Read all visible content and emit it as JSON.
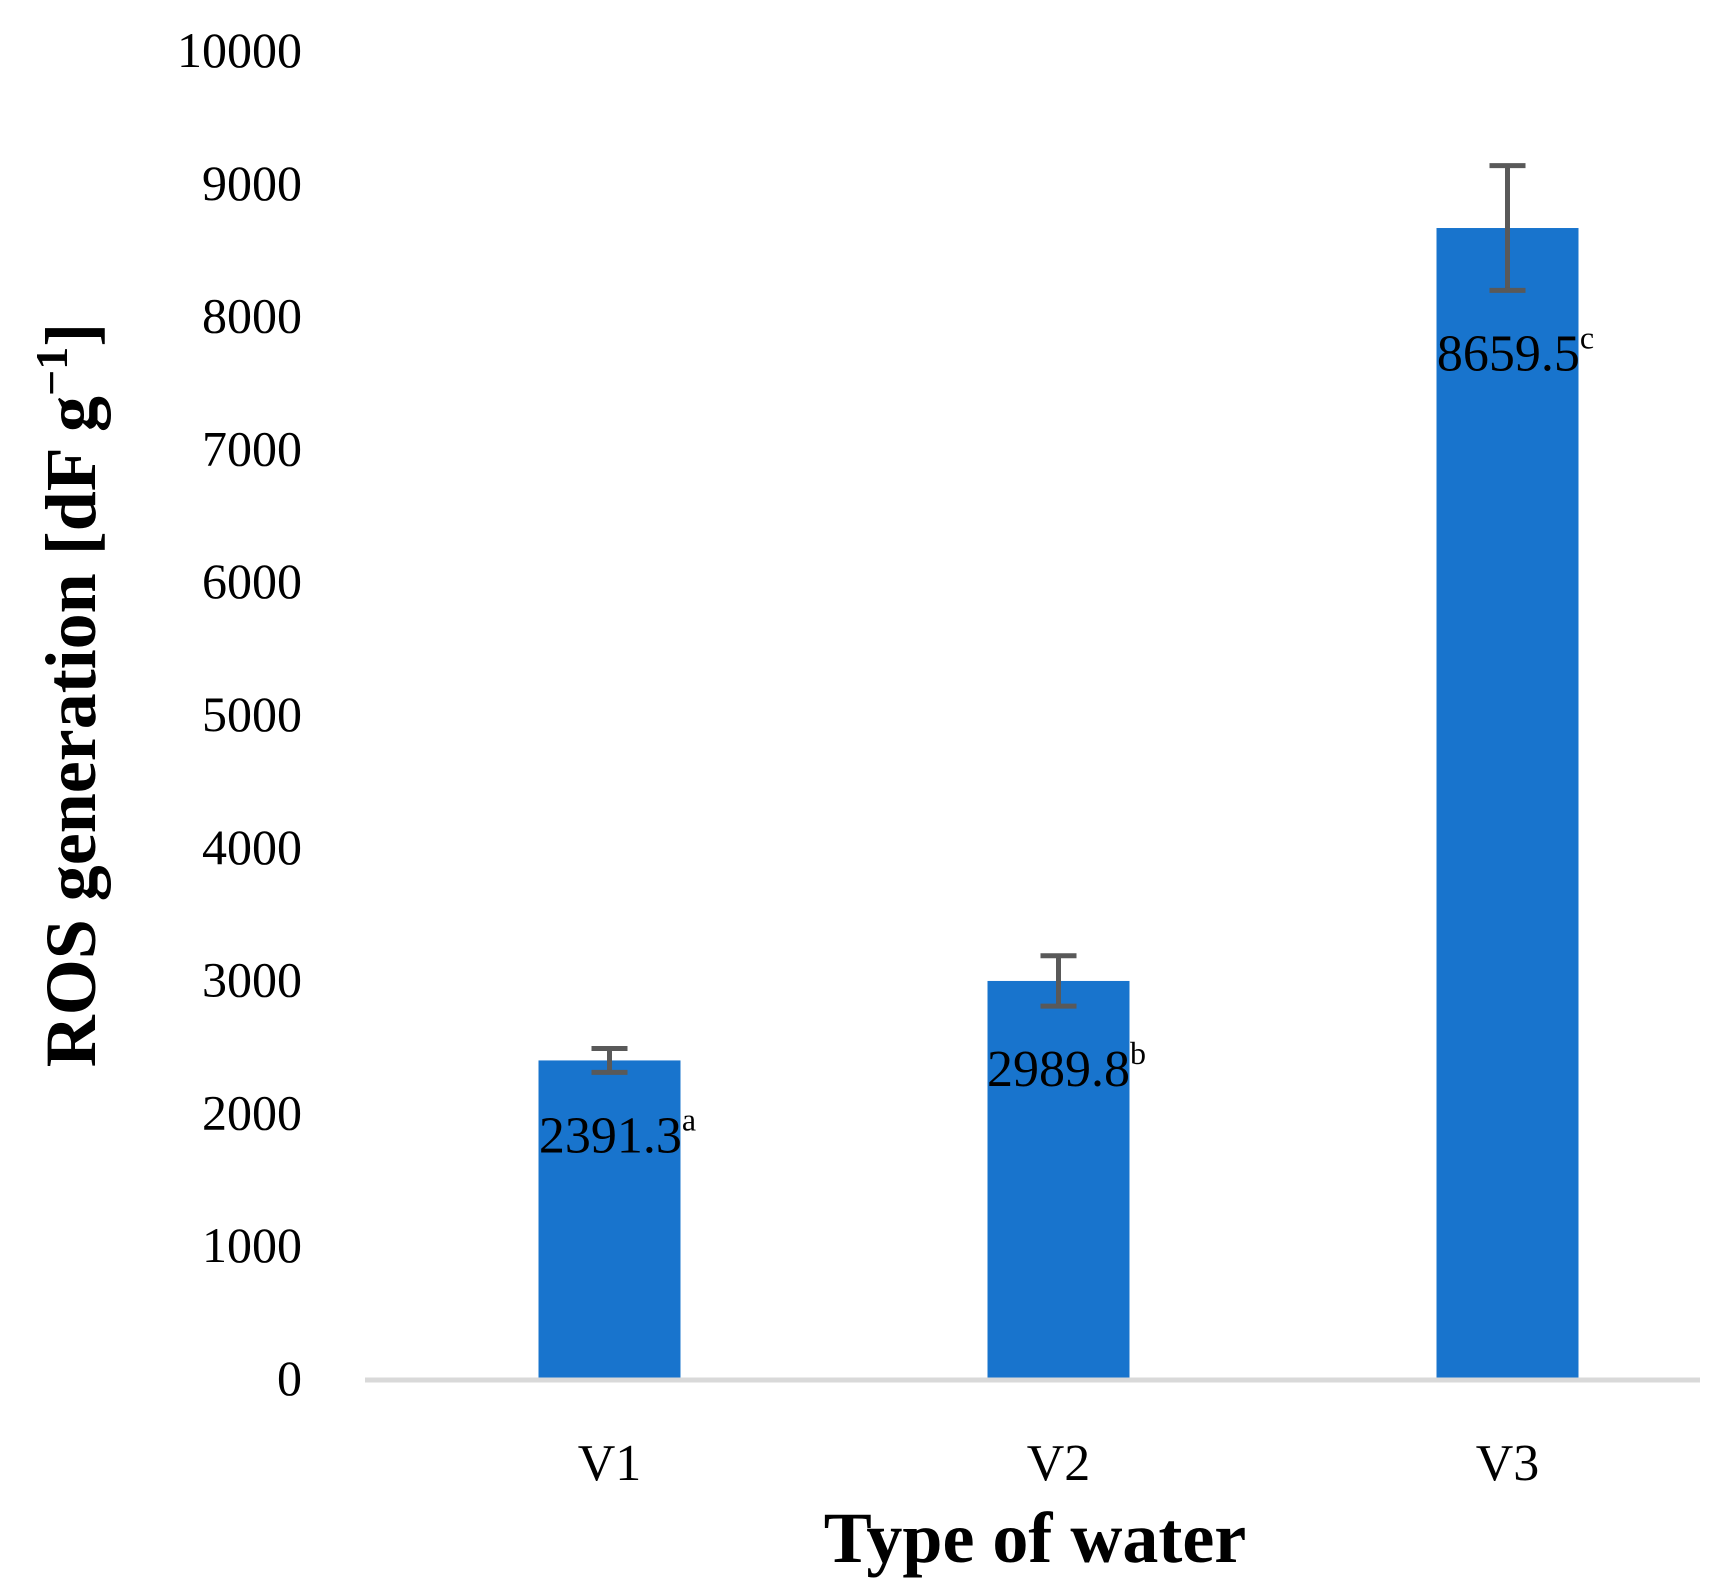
{
  "chart_data": {
    "type": "bar",
    "title": "",
    "xlabel": "Type of water",
    "ylabel_main": "ROS generation [dF g",
    "ylabel_sup": "−1",
    "ylabel_end": "]",
    "categories": [
      "V1",
      "V2",
      "V3"
    ],
    "values": [
      2391.3,
      2989.8,
      8659.5
    ],
    "error": [
      90,
      190,
      470
    ],
    "value_labels": [
      "2391.3",
      "2989.8",
      "8659.5"
    ],
    "significance": [
      "a",
      "b",
      "c"
    ],
    "ylim": [
      0,
      10000
    ],
    "yticks": [
      "0",
      "1000",
      "2000",
      "3000",
      "4000",
      "5000",
      "6000",
      "7000",
      "8000",
      "9000",
      "10000"
    ],
    "grid": false,
    "legend": "none",
    "bar_color": "#1874cd",
    "error_color": "#595959",
    "axis_color": "#d9d9d9"
  }
}
